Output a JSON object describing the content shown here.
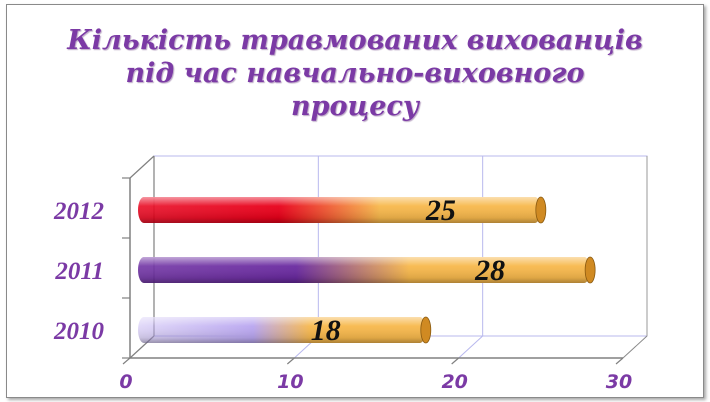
{
  "chart_data": {
    "type": "bar",
    "orientation": "horizontal",
    "title": [
      "Кількість травмованих вихованців",
      "під час навчально-виховного",
      "процесу"
    ],
    "categories": [
      "2012",
      "2011",
      "2010"
    ],
    "values": [
      25,
      28,
      18
    ],
    "xlim": [
      0,
      30
    ],
    "xticks": [
      "0",
      "10",
      "20",
      "30"
    ],
    "grid": true,
    "legend": "none",
    "colors": {
      "bar_end": "#f7b84c",
      "bar_2012": "#e8001a",
      "bar_2011": "#6a2aa0",
      "bar_2010": "#b9a6f0",
      "grid": "#b8b8ee",
      "text": "#7b3aa5"
    }
  }
}
